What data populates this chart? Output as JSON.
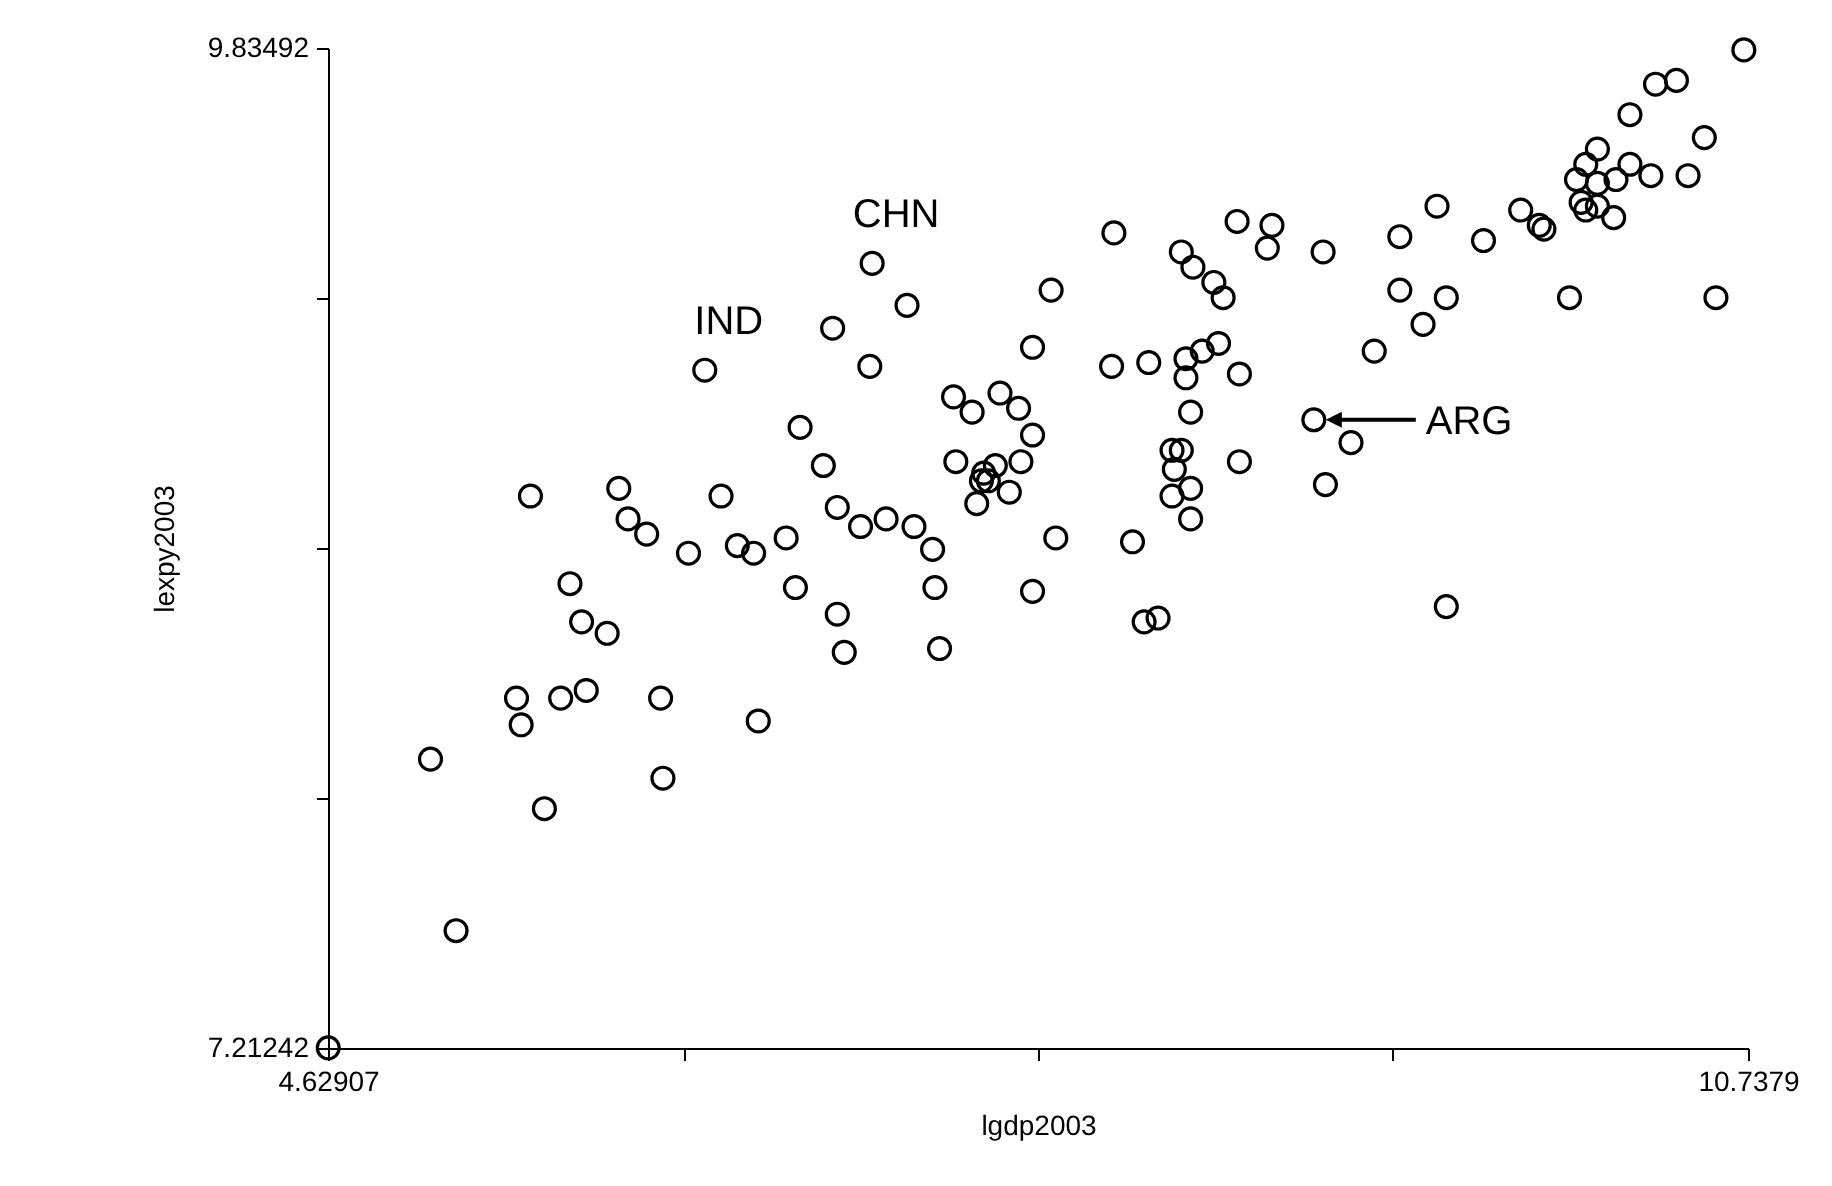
{
  "chart_data": {
    "type": "scatter",
    "xlabel": "lgdp2003",
    "ylabel": "lexpy2003",
    "color": "#000000",
    "marker": "circle",
    "xlim": [
      4.62907,
      10.7379
    ],
    "xticks": [
      4.62907,
      {
        "value": 6.15628,
        "label": null
      },
      {
        "value": 7.68349,
        "label": null
      },
      {
        "value": 9.21069,
        "label": null
      },
      10.7379
    ],
    "ylim": [
      7.21242,
      9.83492
    ],
    "yticks": [
      7.21242,
      {
        "value": 7.86805,
        "label": null
      },
      {
        "value": 8.52367,
        "label": null
      },
      {
        "value": 9.1793,
        "label": null
      },
      9.83492
    ],
    "x": [
      6.76,
      5.5,
      5.88,
      5.92,
      6.0,
      6.32,
      6.82,
      6.92,
      6.18,
      6.39,
      6.46,
      6.6,
      5.67,
      6.64,
      5.72,
      5.83,
      6.82,
      6.85,
      5.44,
      5.63,
      5.74,
      5.46,
      6.06,
      6.48,
      5.07,
      6.07,
      5.56,
      5.18,
      4.63,
      6.97,
      7.12,
      6.8,
      6.96,
      6.66,
      7.03,
      7.15,
      7.23,
      7.24,
      7.26,
      7.74,
      7.66,
      7.32,
      7.4,
      7.52,
      7.6,
      7.66,
      7.33,
      7.61,
      7.5,
      7.45,
      7.44,
      7.47,
      7.42,
      7.56,
      7.76,
      7.66,
      8.01,
      8.0,
      8.09,
      8.16,
      8.14,
      8.2,
      8.3,
      8.35,
      8.44,
      8.48,
      8.46,
      8.39,
      8.32,
      8.32,
      8.55,
      8.34,
      8.26,
      8.3,
      8.27,
      8.34,
      8.26,
      8.34,
      8.55,
      8.54,
      8.69,
      8.67,
      8.87,
      8.92,
      10.72,
      10.34,
      10.43,
      10.23,
      10.55,
      10.09,
      10.04,
      10.0,
      10.09,
      10.17,
      10.23,
      10.32,
      10.48,
      10.02,
      10.09,
      10.04,
      10.16,
      9.76,
      9.84,
      9.86,
      9.6,
      9.4,
      9.24,
      8.91,
      9.24,
      9.44,
      9.34,
      9.13,
      9.97,
      10.6,
      9.03,
      9.44,
      6.25
    ],
    "values": [
      8.74,
      8.66,
      8.68,
      8.6,
      8.56,
      8.66,
      8.63,
      8.58,
      8.51,
      8.53,
      8.51,
      8.55,
      8.43,
      8.42,
      8.33,
      8.3,
      8.35,
      8.25,
      8.13,
      8.13,
      8.15,
      8.06,
      8.13,
      8.07,
      7.97,
      7.92,
      7.84,
      7.52,
      7.213,
      9.27,
      9.16,
      9.1,
      9.0,
      8.84,
      8.6,
      8.58,
      8.52,
      8.42,
      8.26,
      9.2,
      9.05,
      8.92,
      8.88,
      8.93,
      8.89,
      8.82,
      8.75,
      8.75,
      8.74,
      8.72,
      8.7,
      8.7,
      8.64,
      8.67,
      8.55,
      8.41,
      9.35,
      9.0,
      8.54,
      9.01,
      8.33,
      8.34,
      9.3,
      9.26,
      9.22,
      9.18,
      9.06,
      9.04,
      9.02,
      8.97,
      8.98,
      8.88,
      8.78,
      8.78,
      8.73,
      8.68,
      8.66,
      8.6,
      8.75,
      9.38,
      9.37,
      9.31,
      8.86,
      8.69,
      9.83,
      9.74,
      9.75,
      9.66,
      9.6,
      9.57,
      9.53,
      9.49,
      9.48,
      9.49,
      9.53,
      9.5,
      9.5,
      9.43,
      9.42,
      9.41,
      9.39,
      9.41,
      9.37,
      9.36,
      9.33,
      9.42,
      9.34,
      9.3,
      9.2,
      9.18,
      9.11,
      9.04,
      9.18,
      9.18,
      8.8,
      8.37,
      8.99
    ],
    "annotations": [
      {
        "text": "IND",
        "x": 6.25,
        "y": 8.99
      },
      {
        "text": "CHN",
        "x": 6.97,
        "y": 9.27
      },
      {
        "text": "ARG",
        "x": 8.87,
        "y": 8.86
      }
    ]
  }
}
